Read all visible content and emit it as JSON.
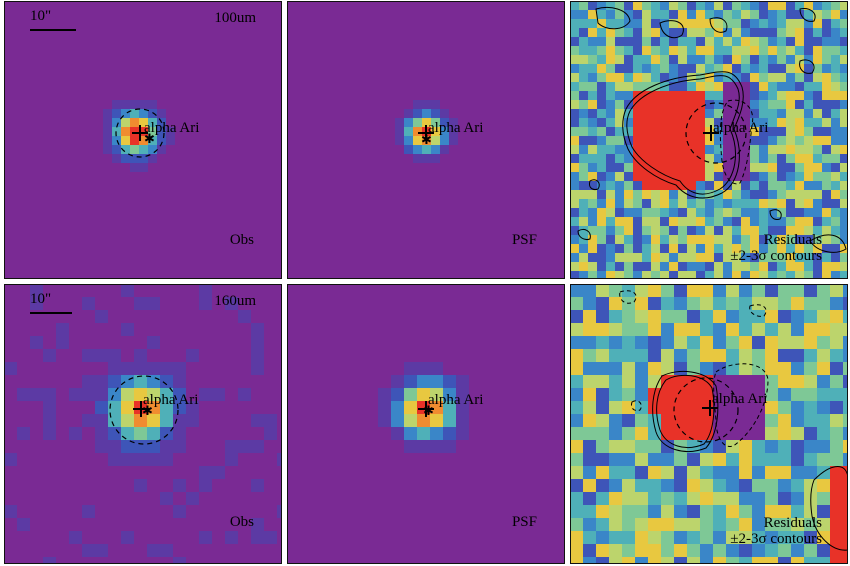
{
  "figure": {
    "rows": [
      {
        "band": "100um",
        "panels": [
          {
            "type": "obs",
            "label": "Obs",
            "target": "alpha Ari",
            "scale_bar": "10\"",
            "band_label": "100um"
          },
          {
            "type": "psf",
            "label": "PSF",
            "target": "alpha Ari"
          },
          {
            "type": "residual",
            "label_line1": "Residuals",
            "label_line2": "±2-3σ contours",
            "target": "alpha Ari"
          }
        ]
      },
      {
        "band": "160um",
        "panels": [
          {
            "type": "obs",
            "label": "Obs",
            "target": "alpha Ari",
            "scale_bar": "10\"",
            "band_label": "160um"
          },
          {
            "type": "psf",
            "label": "PSF",
            "target": "alpha Ari"
          },
          {
            "type": "residual",
            "label_line1": "Residuals",
            "label_line2": "±2-3σ contours",
            "target": "alpha Ari"
          }
        ]
      }
    ],
    "colors": {
      "background": "#7a2a94",
      "colormap": [
        "#7a2a94",
        "#5c3aa4",
        "#3e55b8",
        "#3a86c8",
        "#4fb0b8",
        "#7ec896",
        "#bcd46c",
        "#e8c840",
        "#f08c30",
        "#e83228"
      ],
      "frame": "#111111",
      "marker": "#000000"
    }
  }
}
